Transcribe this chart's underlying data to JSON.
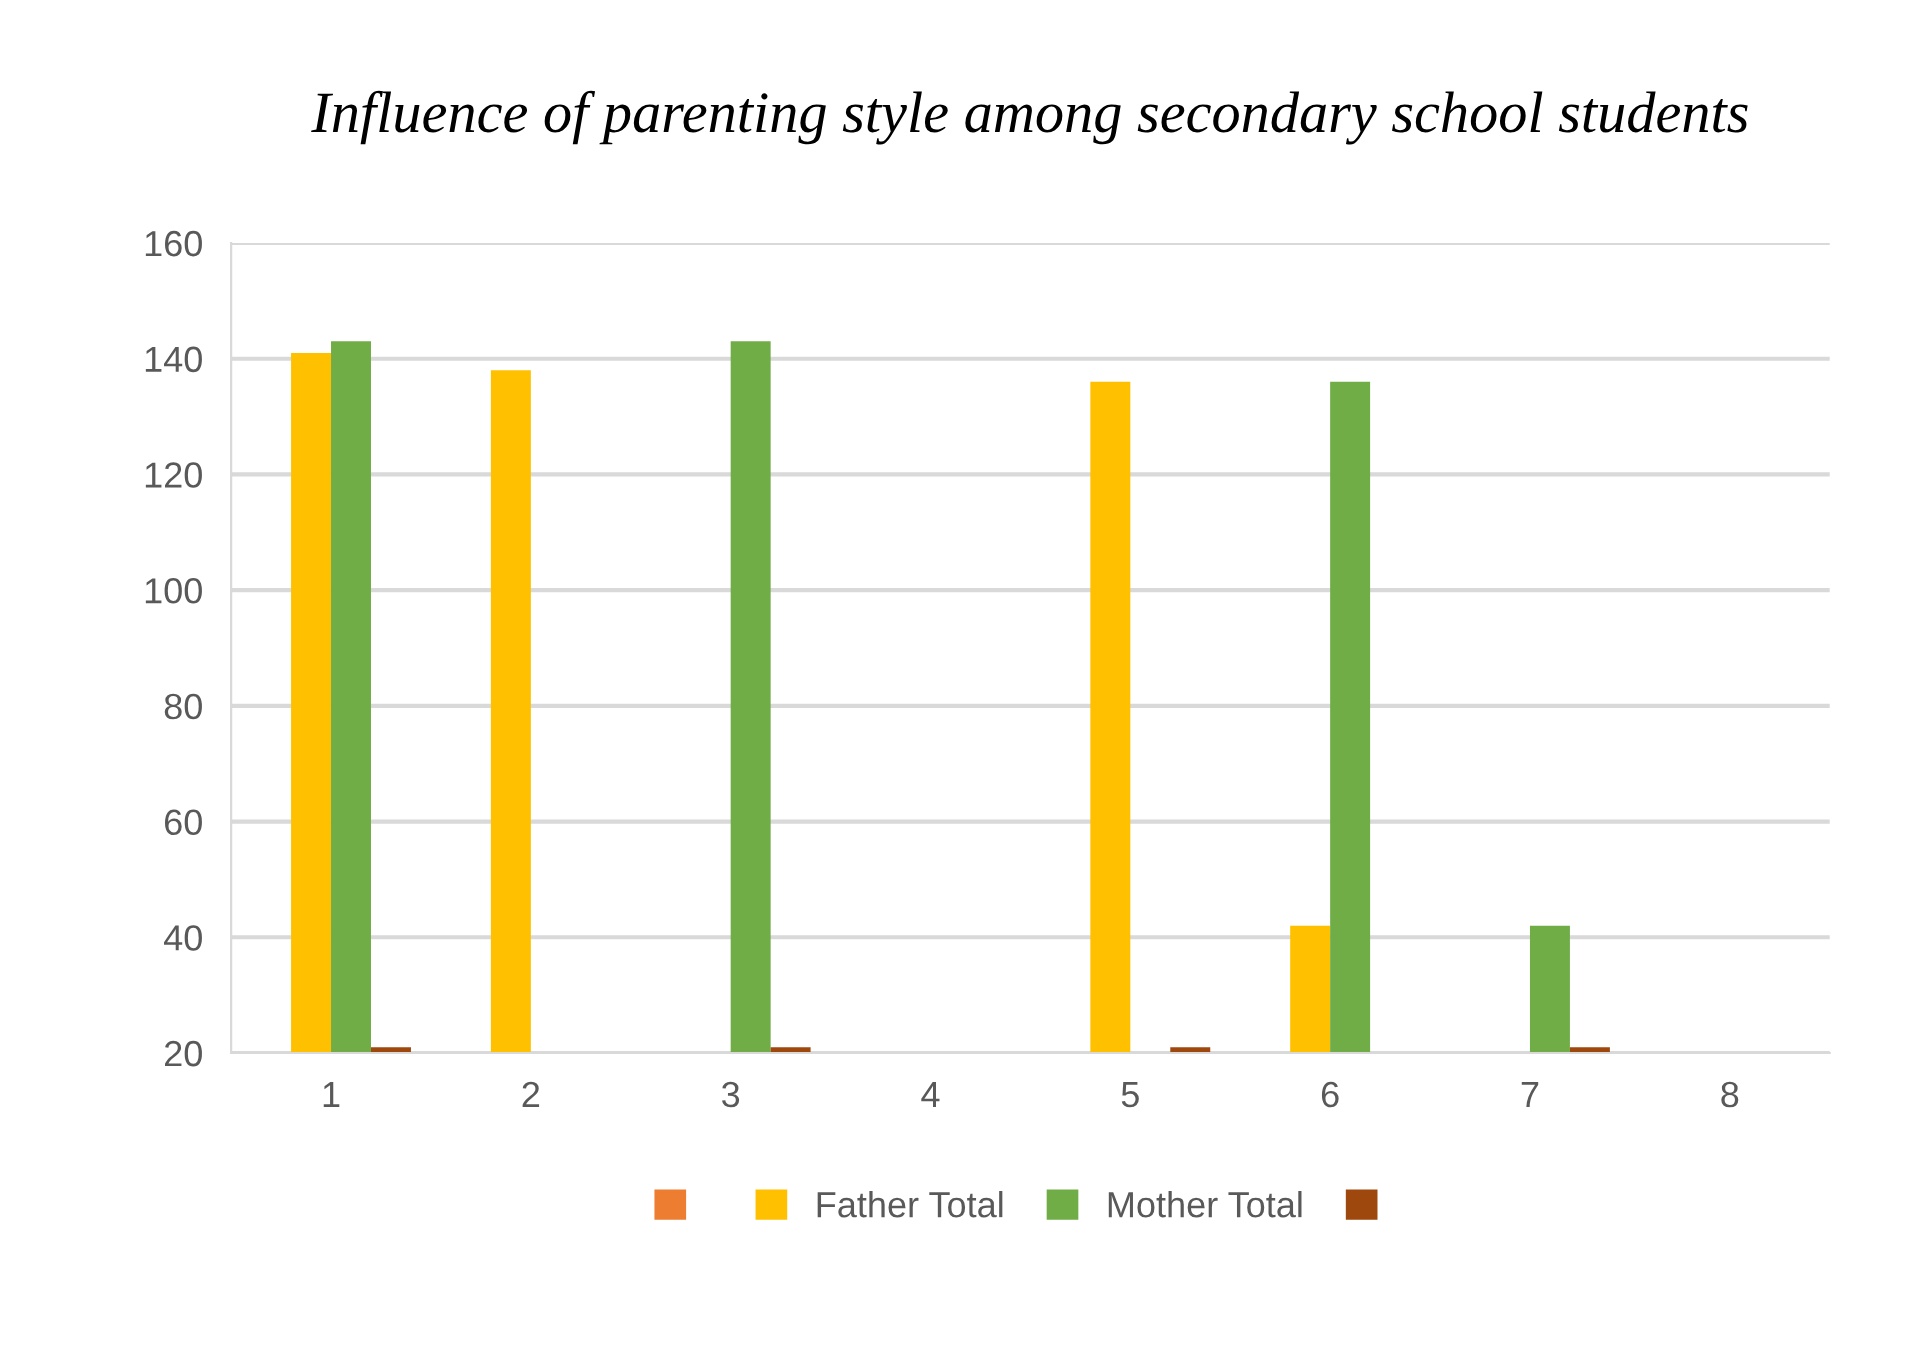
{
  "chart_data": {
    "type": "bar",
    "title": "Influence of parenting style among secondary school students",
    "categories": [
      "1",
      "2",
      "3",
      "4",
      "5",
      "6",
      "7",
      "8"
    ],
    "series": [
      {
        "color": "#ed7d31",
        "values": [
          null,
          null,
          null,
          null,
          null,
          null,
          null,
          null
        ]
      },
      {
        "name": "Father Total",
        "color": "#ffc000",
        "values": [
          141,
          138,
          null,
          null,
          136,
          42,
          null,
          null
        ]
      },
      {
        "name": "Mother Total",
        "color": "#70ad47",
        "values": [
          143,
          null,
          143,
          null,
          null,
          136,
          42,
          null
        ]
      },
      {
        "color": "#9e480e",
        "values": [
          21,
          null,
          21,
          null,
          21,
          null,
          21,
          null
        ]
      }
    ],
    "ylim": [
      20,
      160
    ],
    "yticks": [
      20,
      40,
      60,
      80,
      100,
      120,
      140,
      160
    ],
    "grid": "y",
    "legend": "bottom"
  }
}
